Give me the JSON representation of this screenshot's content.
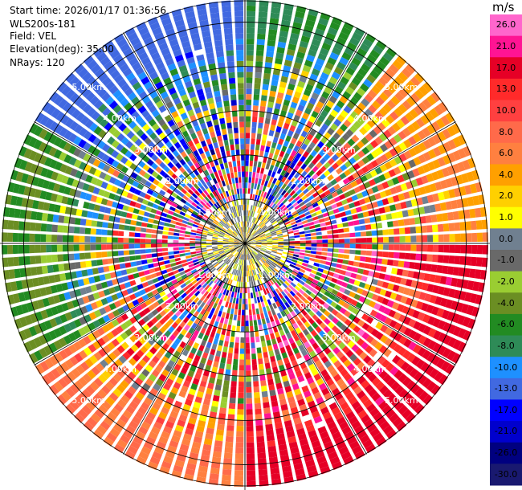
{
  "header": {
    "start_time": "Start time: 2026/01/17 01:36:56",
    "instrument": "WLS200s-181",
    "field": "Field: VEL",
    "elevation": "Elevation(deg): 35.00",
    "nrays": "NRays: 120"
  },
  "chart_data": {
    "type": "heatmap",
    "projection": "polar-ppi",
    "field": "VEL",
    "units": "m/s",
    "nrays": 120,
    "max_range_km": 5.5,
    "range_rings_km": [
      1,
      2,
      3,
      4,
      5
    ],
    "range_ring_labels": [
      "1.00km",
      "2.00km",
      "3.00km",
      "4.00km",
      "5.00km"
    ],
    "colorbar": {
      "title": "m/s",
      "ticks": [
        "26.0",
        "21.0",
        "17.0",
        "13.0",
        "10.0",
        "8.0",
        "6.0",
        "4.0",
        "2.0",
        "1.0",
        "0.0",
        "-1.0",
        "-2.0",
        "-4.0",
        "-6.0",
        "-8.0",
        "-10.0",
        "-13.0",
        "-17.0",
        "-21.0",
        "-26.0",
        "-30.0"
      ],
      "colors": [
        "#ff66cc",
        "#ff1493",
        "#e60026",
        "#ff2a2a",
        "#ff4040",
        "#ff6a4a",
        "#ff8040",
        "#ffa000",
        "#ffd000",
        "#ffff00",
        "#708090",
        "#696969",
        "#9acd32",
        "#6b8e23",
        "#228b22",
        "#2e8b57",
        "#1e90ff",
        "#4169e1",
        "#0000ff",
        "#0000cd",
        "#000080",
        "#191970"
      ]
    },
    "sectors": [
      {
        "az_from": 300,
        "az_to": 360,
        "outer_velocity": -15
      },
      {
        "az_from": 0,
        "az_to": 40,
        "outer_velocity": -8
      },
      {
        "az_from": 40,
        "az_to": 90,
        "outer_velocity": 4
      },
      {
        "az_from": 90,
        "az_to": 180,
        "outer_velocity": 15
      },
      {
        "az_from": 180,
        "az_to": 240,
        "outer_velocity": 6
      },
      {
        "az_from": 240,
        "az_to": 300,
        "outer_velocity": -6
      }
    ],
    "inner_region": {
      "range_km": 1.0,
      "velocity_mix": [
        -2,
        -1,
        0,
        2
      ]
    }
  }
}
